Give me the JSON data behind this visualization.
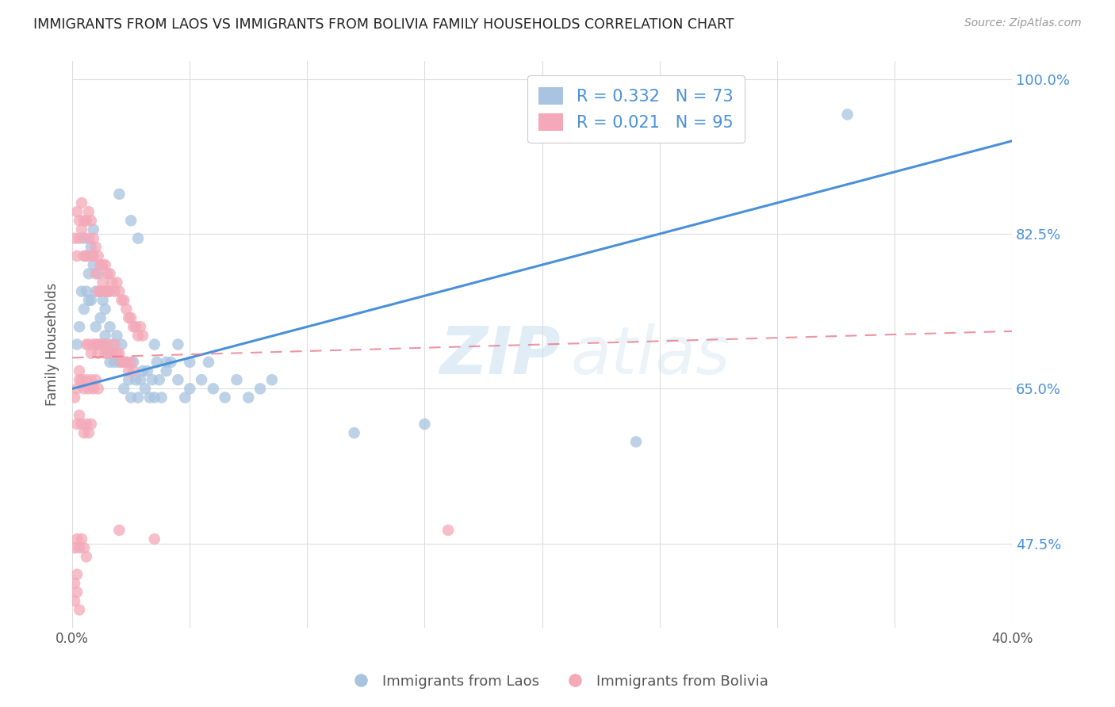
{
  "title": "IMMIGRANTS FROM LAOS VS IMMIGRANTS FROM BOLIVIA FAMILY HOUSEHOLDS CORRELATION CHART",
  "source": "Source: ZipAtlas.com",
  "ylabel": "Family Households",
  "yticks": [
    "100.0%",
    "82.5%",
    "65.0%",
    "47.5%"
  ],
  "ytick_vals": [
    1.0,
    0.825,
    0.65,
    0.475
  ],
  "xlim": [
    0.0,
    0.4
  ],
  "ylim": [
    0.38,
    1.02
  ],
  "laos_color": "#a8c4e0",
  "bolivia_color": "#f4a8b8",
  "trendline_laos_color": "#4a90d9",
  "trendline_bolivia_color": "#e87a8a",
  "laos_trend": [
    0.65,
    0.93
  ],
  "bolivia_trend": [
    0.685,
    0.715
  ],
  "laos_scatter": [
    [
      0.002,
      0.7
    ],
    [
      0.003,
      0.72
    ],
    [
      0.004,
      0.76
    ],
    [
      0.005,
      0.74
    ],
    [
      0.005,
      0.82
    ],
    [
      0.006,
      0.76
    ],
    [
      0.006,
      0.8
    ],
    [
      0.007,
      0.78
    ],
    [
      0.007,
      0.75
    ],
    [
      0.008,
      0.81
    ],
    [
      0.008,
      0.75
    ],
    [
      0.009,
      0.79
    ],
    [
      0.009,
      0.83
    ],
    [
      0.01,
      0.76
    ],
    [
      0.01,
      0.72
    ],
    [
      0.011,
      0.78
    ],
    [
      0.011,
      0.7
    ],
    [
      0.012,
      0.76
    ],
    [
      0.012,
      0.73
    ],
    [
      0.013,
      0.75
    ],
    [
      0.013,
      0.7
    ],
    [
      0.014,
      0.74
    ],
    [
      0.014,
      0.71
    ],
    [
      0.015,
      0.76
    ],
    [
      0.015,
      0.69
    ],
    [
      0.016,
      0.72
    ],
    [
      0.016,
      0.68
    ],
    [
      0.017,
      0.7
    ],
    [
      0.018,
      0.68
    ],
    [
      0.019,
      0.71
    ],
    [
      0.02,
      0.68
    ],
    [
      0.021,
      0.7
    ],
    [
      0.022,
      0.65
    ],
    [
      0.023,
      0.68
    ],
    [
      0.024,
      0.66
    ],
    [
      0.025,
      0.64
    ],
    [
      0.026,
      0.68
    ],
    [
      0.027,
      0.66
    ],
    [
      0.028,
      0.64
    ],
    [
      0.029,
      0.66
    ],
    [
      0.03,
      0.67
    ],
    [
      0.031,
      0.65
    ],
    [
      0.032,
      0.67
    ],
    [
      0.033,
      0.64
    ],
    [
      0.034,
      0.66
    ],
    [
      0.035,
      0.64
    ],
    [
      0.036,
      0.68
    ],
    [
      0.037,
      0.66
    ],
    [
      0.038,
      0.64
    ],
    [
      0.04,
      0.67
    ],
    [
      0.042,
      0.68
    ],
    [
      0.045,
      0.66
    ],
    [
      0.048,
      0.64
    ],
    [
      0.05,
      0.65
    ],
    [
      0.055,
      0.66
    ],
    [
      0.058,
      0.68
    ],
    [
      0.06,
      0.65
    ],
    [
      0.065,
      0.64
    ],
    [
      0.07,
      0.66
    ],
    [
      0.075,
      0.64
    ],
    [
      0.08,
      0.65
    ],
    [
      0.085,
      0.66
    ],
    [
      0.02,
      0.87
    ],
    [
      0.025,
      0.84
    ],
    [
      0.028,
      0.82
    ],
    [
      0.035,
      0.7
    ],
    [
      0.04,
      0.68
    ],
    [
      0.045,
      0.7
    ],
    [
      0.05,
      0.68
    ],
    [
      0.12,
      0.6
    ],
    [
      0.15,
      0.61
    ],
    [
      0.24,
      0.59
    ],
    [
      0.33,
      0.96
    ]
  ],
  "bolivia_scatter": [
    [
      0.001,
      0.82
    ],
    [
      0.002,
      0.85
    ],
    [
      0.002,
      0.8
    ],
    [
      0.003,
      0.84
    ],
    [
      0.003,
      0.82
    ],
    [
      0.004,
      0.86
    ],
    [
      0.004,
      0.83
    ],
    [
      0.005,
      0.84
    ],
    [
      0.005,
      0.8
    ],
    [
      0.006,
      0.84
    ],
    [
      0.006,
      0.8
    ],
    [
      0.007,
      0.85
    ],
    [
      0.007,
      0.82
    ],
    [
      0.008,
      0.84
    ],
    [
      0.008,
      0.8
    ],
    [
      0.009,
      0.82
    ],
    [
      0.009,
      0.8
    ],
    [
      0.01,
      0.81
    ],
    [
      0.01,
      0.78
    ],
    [
      0.011,
      0.8
    ],
    [
      0.011,
      0.76
    ],
    [
      0.012,
      0.79
    ],
    [
      0.012,
      0.76
    ],
    [
      0.013,
      0.79
    ],
    [
      0.013,
      0.77
    ],
    [
      0.014,
      0.79
    ],
    [
      0.014,
      0.76
    ],
    [
      0.015,
      0.78
    ],
    [
      0.015,
      0.76
    ],
    [
      0.016,
      0.78
    ],
    [
      0.016,
      0.76
    ],
    [
      0.017,
      0.77
    ],
    [
      0.018,
      0.76
    ],
    [
      0.019,
      0.77
    ],
    [
      0.02,
      0.76
    ],
    [
      0.021,
      0.75
    ],
    [
      0.022,
      0.75
    ],
    [
      0.023,
      0.74
    ],
    [
      0.024,
      0.73
    ],
    [
      0.025,
      0.73
    ],
    [
      0.026,
      0.72
    ],
    [
      0.027,
      0.72
    ],
    [
      0.028,
      0.71
    ],
    [
      0.029,
      0.72
    ],
    [
      0.03,
      0.71
    ],
    [
      0.006,
      0.7
    ],
    [
      0.007,
      0.7
    ],
    [
      0.008,
      0.69
    ],
    [
      0.009,
      0.7
    ],
    [
      0.01,
      0.7
    ],
    [
      0.011,
      0.69
    ],
    [
      0.012,
      0.7
    ],
    [
      0.013,
      0.7
    ],
    [
      0.014,
      0.69
    ],
    [
      0.015,
      0.7
    ],
    [
      0.016,
      0.69
    ],
    [
      0.017,
      0.69
    ],
    [
      0.018,
      0.7
    ],
    [
      0.019,
      0.69
    ],
    [
      0.02,
      0.69
    ],
    [
      0.021,
      0.68
    ],
    [
      0.022,
      0.68
    ],
    [
      0.023,
      0.68
    ],
    [
      0.024,
      0.67
    ],
    [
      0.025,
      0.68
    ],
    [
      0.026,
      0.67
    ],
    [
      0.001,
      0.64
    ],
    [
      0.002,
      0.65
    ],
    [
      0.003,
      0.66
    ],
    [
      0.003,
      0.67
    ],
    [
      0.004,
      0.66
    ],
    [
      0.005,
      0.65
    ],
    [
      0.006,
      0.66
    ],
    [
      0.007,
      0.65
    ],
    [
      0.008,
      0.66
    ],
    [
      0.009,
      0.65
    ],
    [
      0.01,
      0.66
    ],
    [
      0.011,
      0.65
    ],
    [
      0.002,
      0.61
    ],
    [
      0.003,
      0.62
    ],
    [
      0.004,
      0.61
    ],
    [
      0.005,
      0.6
    ],
    [
      0.006,
      0.61
    ],
    [
      0.007,
      0.6
    ],
    [
      0.008,
      0.61
    ],
    [
      0.001,
      0.47
    ],
    [
      0.002,
      0.48
    ],
    [
      0.003,
      0.47
    ],
    [
      0.004,
      0.48
    ],
    [
      0.005,
      0.47
    ],
    [
      0.006,
      0.46
    ],
    [
      0.001,
      0.43
    ],
    [
      0.002,
      0.44
    ],
    [
      0.001,
      0.41
    ],
    [
      0.002,
      0.42
    ],
    [
      0.003,
      0.4
    ],
    [
      0.02,
      0.49
    ],
    [
      0.035,
      0.48
    ],
    [
      0.16,
      0.49
    ]
  ]
}
